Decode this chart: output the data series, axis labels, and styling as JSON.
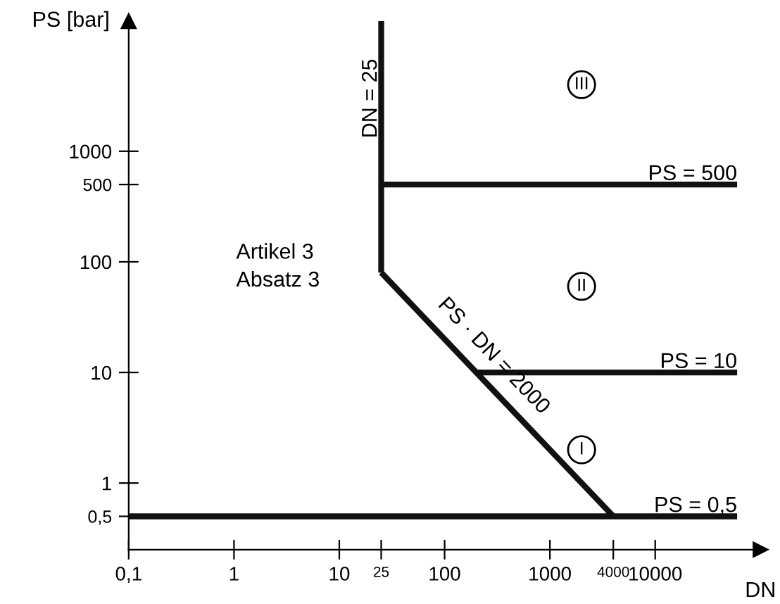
{
  "chart_data": {
    "type": "line",
    "xlabel": "DN",
    "ylabel": "PS [bar]",
    "log": "xy",
    "xlim": [
      0.1,
      100000
    ],
    "ylim": [
      0.25,
      15000
    ],
    "xticks": [
      {
        "value": 0.1,
        "label": "0,1"
      },
      1,
      10,
      25,
      100,
      1000,
      4000,
      10000
    ],
    "yticks": [
      {
        "value": 0.5,
        "label": "0,5"
      },
      1,
      10,
      100,
      500,
      1000
    ],
    "grid": false,
    "marker": "none",
    "line_style": "solid",
    "series": [
      {
        "color": "#111111",
        "x": [
          25,
          25
        ],
        "values": [
          80,
          15000
        ]
      },
      {
        "color": "#111111",
        "x": [
          25,
          4000
        ],
        "values": [
          80,
          0.5
        ]
      },
      {
        "color": "#111111",
        "x": [
          25,
          60000
        ],
        "values": [
          500,
          500
        ]
      },
      {
        "color": "#111111",
        "x": [
          200,
          60000
        ],
        "values": [
          10,
          10
        ]
      },
      {
        "color": "#111111",
        "x": [
          0.1,
          60000
        ],
        "values": [
          0.5,
          0.5
        ]
      }
    ],
    "annotations": [
      {
        "text": "DN = 25",
        "x": 25,
        "y": 3000
      },
      {
        "text": "PS = 500",
        "x": 60000,
        "y": 500
      },
      {
        "text": "PS = 10",
        "x": 60000,
        "y": 10
      },
      {
        "text": "PS = 0,5",
        "x": 60000,
        "y": 0.5
      },
      {
        "text": "PS · DN = 2000",
        "x": 200,
        "y": 10
      },
      {
        "text": "III",
        "x": 2000,
        "y": 4000
      },
      {
        "text": "II",
        "x": 2000,
        "y": 60
      },
      {
        "text": "I",
        "x": 2000,
        "y": 2
      },
      "Artikel 3\nAbsatz 3"
    ]
  }
}
